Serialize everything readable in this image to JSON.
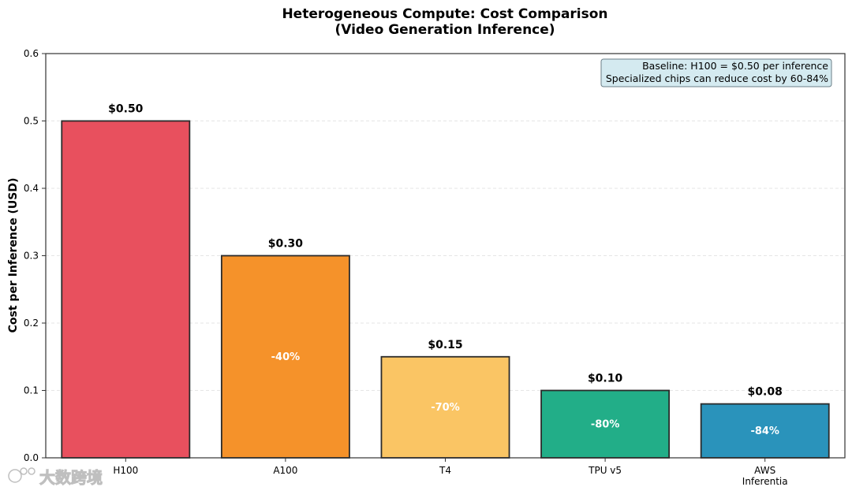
{
  "chart_data": {
    "type": "bar",
    "title_line1": "Heterogeneous Compute: Cost Comparison",
    "title_line2": "(Video Generation Inference)",
    "ylabel": "Cost per Inference (USD)",
    "xlabel": "",
    "ylim": [
      0,
      0.6
    ],
    "yticks": [
      "0.0",
      "0.1",
      "0.2",
      "0.3",
      "0.4",
      "0.5",
      "0.6"
    ],
    "grid": "horizontal dashed",
    "categories": [
      {
        "label": [
          "H100"
        ],
        "value": 0.5,
        "value_label": "$0.50",
        "reduction": "",
        "color": "#e8505e"
      },
      {
        "label": [
          "A100"
        ],
        "value": 0.3,
        "value_label": "$0.30",
        "reduction": "-40%",
        "color": "#f5922a"
      },
      {
        "label": [
          "T4"
        ],
        "value": 0.15,
        "value_label": "$0.15",
        "reduction": "-70%",
        "color": "#fac564"
      },
      {
        "label": [
          "TPU v5"
        ],
        "value": 0.1,
        "value_label": "$0.10",
        "reduction": "-80%",
        "color": "#22ae88"
      },
      {
        "label": [
          "AWS",
          "Inferentia"
        ],
        "value": 0.08,
        "value_label": "$0.08",
        "reduction": "-84%",
        "color": "#2a93bb"
      }
    ],
    "annotation": {
      "line1": "Baseline: H100 = $0.50 per inference",
      "line2": "Specialized chips can reduce cost by 60-84%",
      "placement": "top-right",
      "background": "#d4eaf0"
    }
  },
  "watermark": {
    "text": "大数跨境"
  }
}
